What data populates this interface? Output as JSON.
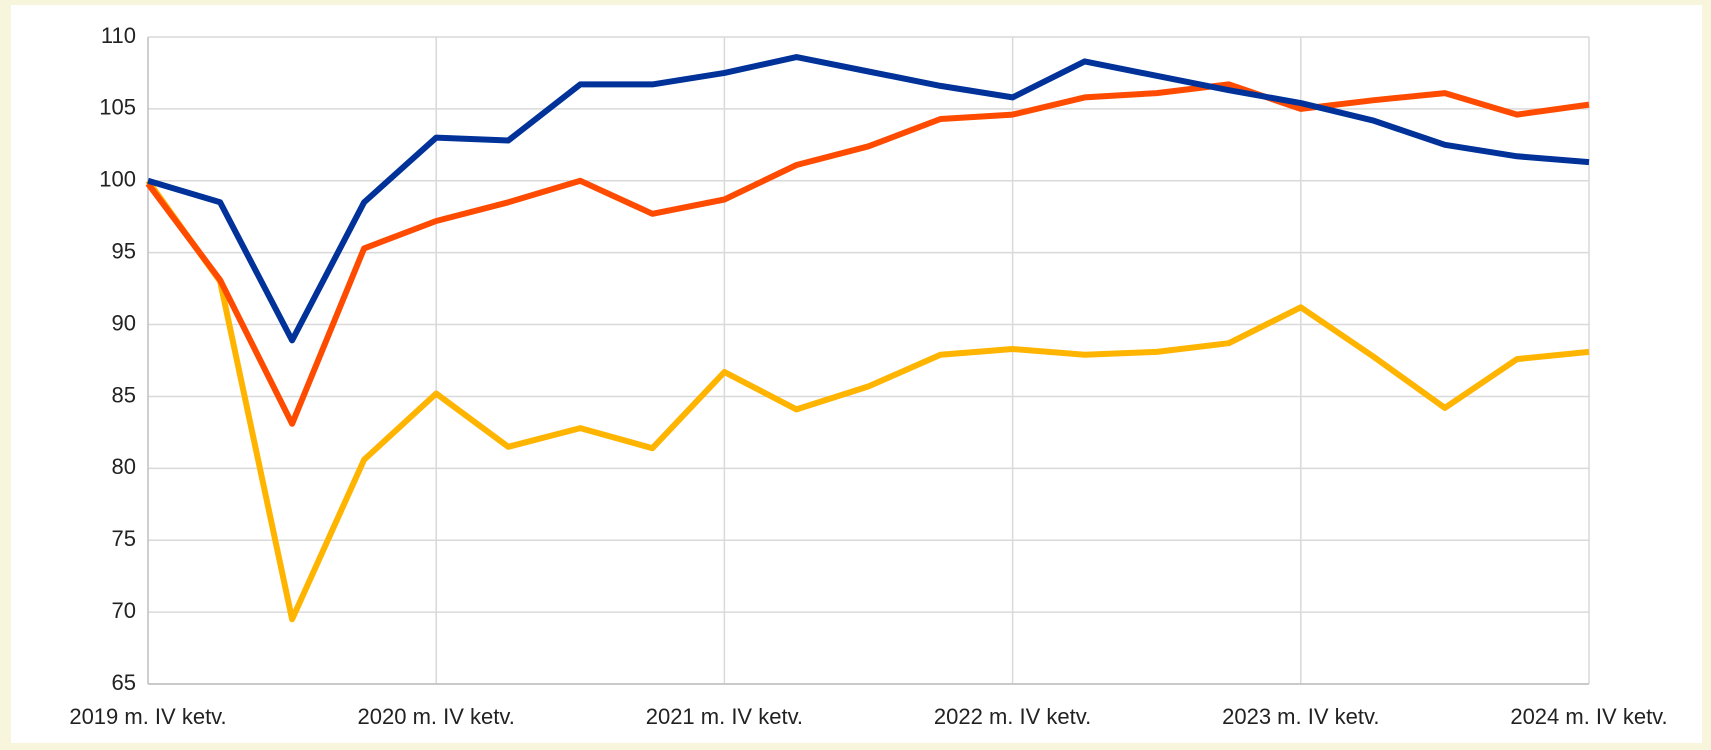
{
  "chart_data": {
    "type": "line",
    "categories": [
      "2019 m. IV ketv.",
      null,
      null,
      null,
      "2020 m. IV ketv.",
      null,
      null,
      null,
      "2021 m. IV ketv.",
      null,
      null,
      null,
      "2022 m. IV ketv.",
      null,
      null,
      null,
      "2023 m. IV ketv.",
      null,
      null,
      null,
      "2024 m. IV ketv."
    ],
    "series": [
      {
        "color": "#003299",
        "values": [
          100,
          98.5,
          88.9,
          98.5,
          103.0,
          102.8,
          106.7,
          106.7,
          107.5,
          108.6,
          107.6,
          106.6,
          105.8,
          108.3,
          107.3,
          106.3,
          105.4,
          104.2,
          102.5,
          101.7,
          101.3
        ]
      },
      {
        "color": "#ff4b00",
        "values": [
          99.8,
          93.1,
          83.1,
          95.3,
          97.2,
          98.5,
          100.0,
          97.7,
          98.7,
          101.1,
          102.4,
          104.3,
          104.6,
          105.8,
          106.1,
          106.7,
          105.0,
          105.6,
          106.1,
          104.6,
          105.3
        ]
      },
      {
        "color": "#ffb400",
        "values": [
          100,
          93,
          69.5,
          80.6,
          85.2,
          81.5,
          82.8,
          81.4,
          86.7,
          84.1,
          85.7,
          87.9,
          88.3,
          87.9,
          88.1,
          88.7,
          91.2,
          87.8,
          84.2,
          87.6,
          88.1
        ]
      }
    ],
    "ylim": [
      65,
      110
    ],
    "yticks": [
      65,
      70,
      75,
      80,
      85,
      90,
      95,
      100,
      105,
      110
    ],
    "grid": true
  }
}
